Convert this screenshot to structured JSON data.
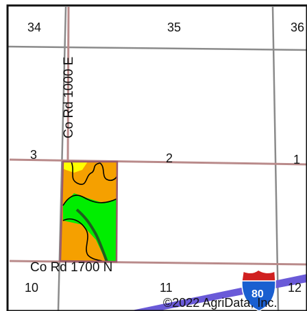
{
  "map": {
    "section_labels": [
      "34",
      "35",
      "36",
      "3",
      "2",
      "1",
      "10",
      "11",
      "12"
    ],
    "roads": {
      "vertical": "Co Rd 1000 E",
      "horizontal": "Co Rd 1700 N"
    },
    "interstate": "80",
    "copyright": "©2022 AgriData, Inc.",
    "colors": {
      "frame": "#111111",
      "section_line": "#8a8a8a",
      "road": "#b98a8a",
      "parcel_orange": "#f5a000",
      "parcel_green": "#00ee00",
      "parcel_yellow": "#ffff00",
      "parcel_dark": "#2a6a2a",
      "parcel_outline": "#9a5a6a",
      "interstate_band": "#6a5ad8",
      "shield_blue": "#1a5fd0",
      "shield_red": "#d02020"
    }
  }
}
